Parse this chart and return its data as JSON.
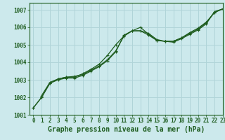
{
  "title": "Graphe pression niveau de la mer (hPa)",
  "background_color": "#cce9ec",
  "grid_color": "#b0d4d8",
  "line_color": "#1e5c1e",
  "marker_color": "#1e5c1e",
  "xlim": [
    -0.5,
    23
  ],
  "ylim": [
    1001,
    1007.4
  ],
  "yticks": [
    1001,
    1002,
    1003,
    1004,
    1005,
    1006,
    1007
  ],
  "xticks": [
    0,
    1,
    2,
    3,
    4,
    5,
    6,
    7,
    8,
    9,
    10,
    11,
    12,
    13,
    14,
    15,
    16,
    17,
    18,
    19,
    20,
    21,
    22,
    23
  ],
  "series1": {
    "x": [
      0,
      1,
      2,
      3,
      4,
      5,
      6,
      7,
      8,
      9,
      10,
      11,
      12,
      13,
      14,
      15,
      16,
      17,
      18,
      19,
      20,
      21,
      22,
      23
    ],
    "y": [
      1001.4,
      1002.0,
      1002.8,
      1003.0,
      1003.1,
      1003.1,
      1003.25,
      1003.5,
      1003.75,
      1004.1,
      1004.6,
      1005.55,
      1005.8,
      1005.8,
      1005.65,
      1005.3,
      1005.2,
      1005.15,
      1005.35,
      1005.6,
      1005.85,
      1006.2,
      1006.9,
      1007.05
    ]
  },
  "series2": {
    "x": [
      0,
      1,
      2,
      3,
      4,
      5,
      6,
      7,
      8,
      9,
      10,
      11,
      12,
      13,
      14,
      15,
      16,
      17,
      18,
      19,
      20,
      21,
      22,
      23
    ],
    "y": [
      1001.4,
      1002.0,
      1002.8,
      1003.05,
      1003.15,
      1003.15,
      1003.35,
      1003.6,
      1003.9,
      1004.4,
      1005.0,
      1005.5,
      1005.8,
      1005.8,
      1005.55,
      1005.25,
      1005.2,
      1005.2,
      1005.4,
      1005.65,
      1005.9,
      1006.25,
      1006.85,
      1007.05
    ]
  },
  "series3": {
    "x": [
      1,
      2,
      3,
      4,
      5,
      6,
      7,
      8,
      9,
      10,
      11,
      12,
      13,
      14,
      15,
      16,
      17,
      18,
      19,
      20,
      21,
      22,
      23
    ],
    "y": [
      1002.1,
      1002.85,
      1003.05,
      1003.15,
      1003.2,
      1003.3,
      1003.55,
      1003.8,
      1004.15,
      1004.65,
      1005.5,
      1005.8,
      1006.0,
      1005.6,
      1005.25,
      1005.2,
      1005.2,
      1005.4,
      1005.7,
      1005.95,
      1006.3,
      1006.85,
      1007.05
    ]
  },
  "title_fontsize": 7,
  "tick_fontsize": 5.5
}
